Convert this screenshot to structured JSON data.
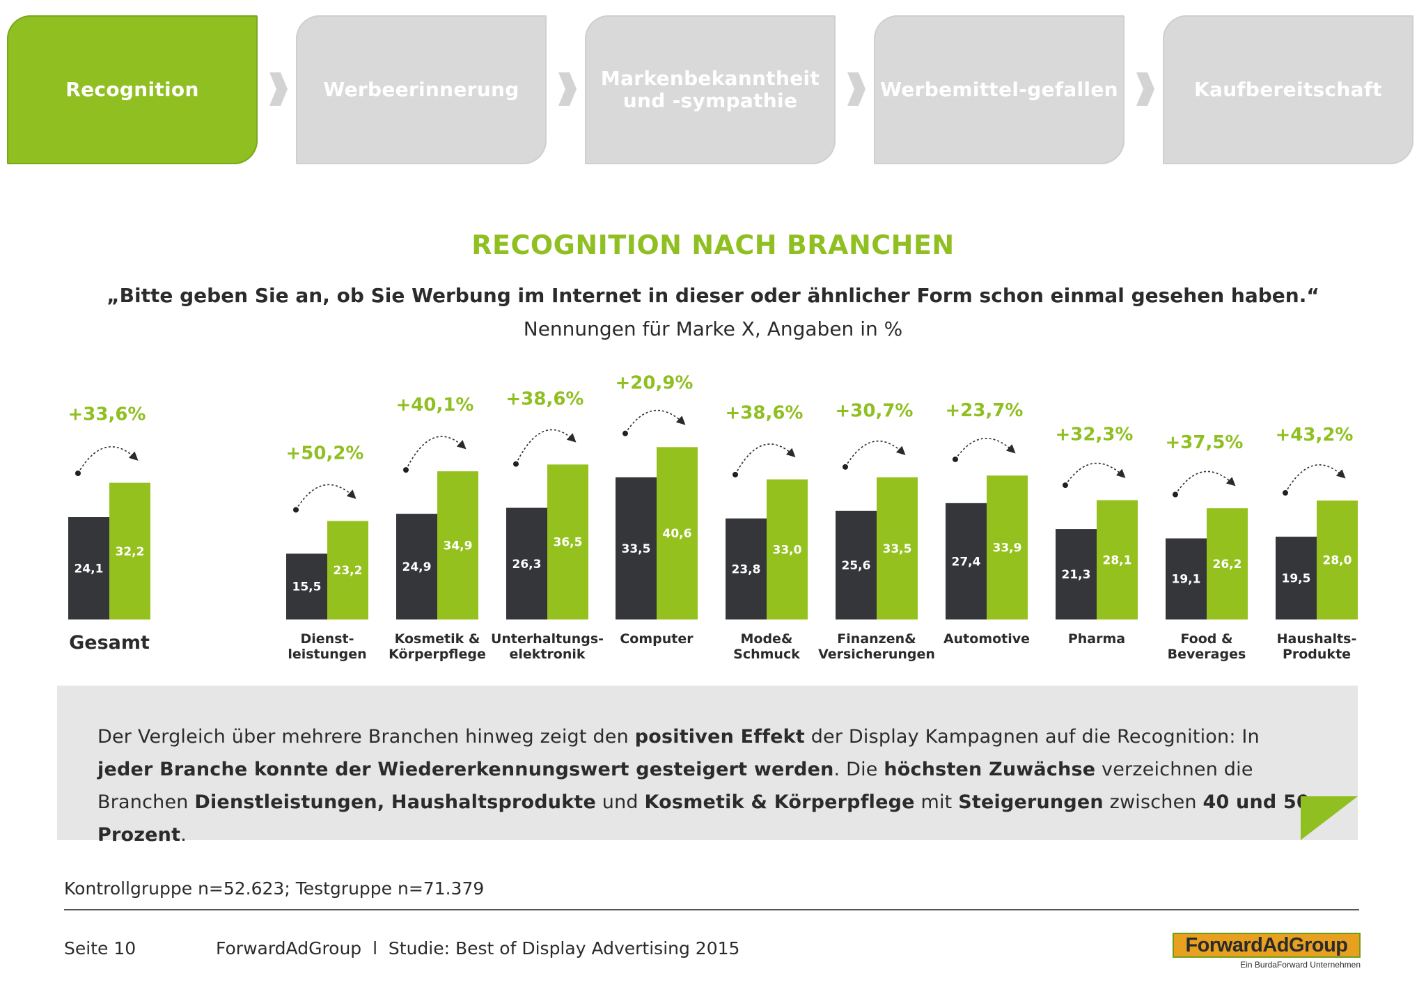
{
  "steps": [
    {
      "label": "Recognition",
      "active": true
    },
    {
      "label": "Werbeerinnerung",
      "active": false
    },
    {
      "label": "Markenbekanntheit und -sympathie",
      "active": false
    },
    {
      "label": "Werbemittel-gefallen",
      "active": false
    },
    {
      "label": "Kaufbereitschaft",
      "active": false
    }
  ],
  "header": {
    "title": "RECOGNITION NACH BRANCHEN",
    "question": "„Bitte geben Sie an, ob Sie Werbung im Internet in dieser oder ähnlicher Form schon einmal gesehen haben.“",
    "subtitle": "Nennungen für Marke X, Angaben in %"
  },
  "colors": {
    "control": "#35363a",
    "test": "#95c11f",
    "accent": "#8fbf21",
    "box": "#e6e6e6"
  },
  "chart_data": {
    "type": "bar",
    "categories": [
      "Gesamt",
      "Dienst-\nleistungen",
      "Kosmetik &\nKörperpflege",
      "Unterhaltungs-\nelektronik",
      "Computer",
      "Mode&\nSchmuck",
      "Finanzen&\nVersicherungen",
      "Automotive",
      "Pharma",
      "Food &\nBeverages",
      "Haushalts-\nProdukte"
    ],
    "series": [
      {
        "values": [
          24.1,
          15.5,
          24.9,
          26.3,
          33.5,
          23.8,
          25.6,
          27.4,
          21.3,
          19.1,
          19.5
        ],
        "labels": [
          "24,1",
          "15,5",
          "24,9",
          "26,3",
          "33,5",
          "23,8",
          "25,6",
          "27,4",
          "21,3",
          "19,1",
          "19,5"
        ]
      },
      {
        "values": [
          32.2,
          23.2,
          34.9,
          36.5,
          40.6,
          33.0,
          33.5,
          33.9,
          28.1,
          26.2,
          28.0
        ],
        "labels": [
          "32,2",
          "23,2",
          "34,9",
          "36,5",
          "40,6",
          "33,0",
          "33,5",
          "33,9",
          "28,1",
          "26,2",
          "28,0"
        ]
      }
    ],
    "increases": [
      "+33,6%",
      "+50,2%",
      "+40,1%",
      "+38,6%",
      "+20,9%",
      "+38,6%",
      "+30,7%",
      "+23,7%",
      "+32,3%",
      "+37,5%",
      "+43,2%"
    ],
    "ylim": [
      0,
      45
    ],
    "grid": false,
    "legend": "none"
  },
  "summary": {
    "segments": [
      {
        "text": "Der Vergleich über mehrere Branchen hinweg zeigt den ",
        "bold": false
      },
      {
        "text": "positiven Effekt",
        "bold": true
      },
      {
        "text": " der Display Kampagnen auf die Recognition: In ",
        "bold": false
      },
      {
        "text": "jeder Branche konnte der Wiedererkennungswert gesteigert werden",
        "bold": true
      },
      {
        "text": ". Die ",
        "bold": false
      },
      {
        "text": "höchsten Zuwächse",
        "bold": true
      },
      {
        "text": " verzeichnen die Branchen ",
        "bold": false
      },
      {
        "text": "Dienstleistungen, Haushaltsprodukte",
        "bold": true
      },
      {
        "text": " und ",
        "bold": false
      },
      {
        "text": "Kosmetik & Körperpflege",
        "bold": true
      },
      {
        "text": " mit ",
        "bold": false
      },
      {
        "text": "Steigerungen",
        "bold": true
      },
      {
        "text": " zwischen ",
        "bold": false
      },
      {
        "text": "40 und 50 Prozent",
        "bold": true
      },
      {
        "text": ".",
        "bold": false
      }
    ]
  },
  "footer": {
    "sample": "Kontrollgruppe n=52.623; Testgruppe n=71.379",
    "page": "Seite 10",
    "study": "ForwardAdGroup  l  Studie: Best of Display Advertising 2015",
    "logo_main": "ForwardAdGroup",
    "logo_sub": "Ein BurdaForward Unternehmen"
  }
}
